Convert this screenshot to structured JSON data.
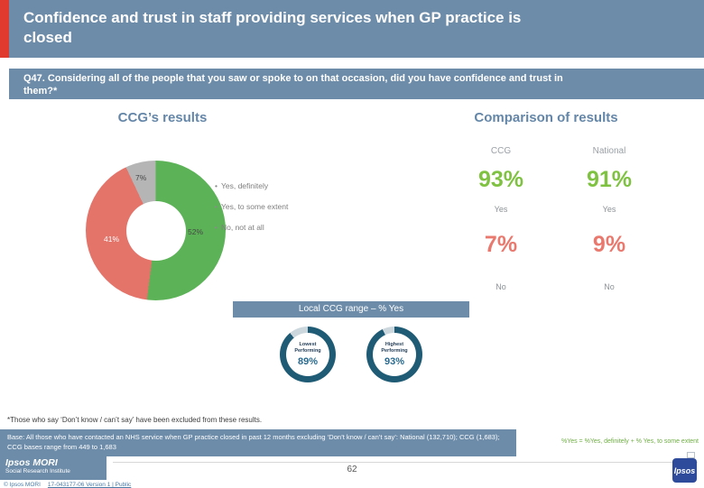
{
  "slide": {
    "title": "Confidence and trust in staff providing services when GP practice is closed",
    "question": "Q47. Considering all of the people that you saw or spoke to on that occasion, did you have confidence and trust in them?*",
    "footnote": "*Those who say ‘Don’t know / can’t say’ have been excluded from these results.",
    "base_text": "Base: All those who have contacted an NHS service when GP practice closed in past 12 months excluding ‘Don’t know / can’t say’: National (132,710); CCG (1,683); CCG bases range from 449 to 1,683",
    "yes_note": "%Yes = %Yes, definitely + % Yes, to some extent",
    "page_number": "62"
  },
  "headings": {
    "left": "CCG’s results",
    "right": "Comparison of results"
  },
  "comparison": {
    "columns": [
      "CCG",
      "National"
    ],
    "rows": [
      {
        "values": [
          "93%",
          "91%"
        ],
        "captions": [
          "Yes",
          "Yes"
        ]
      },
      {
        "values": [
          "7%",
          "9%"
        ],
        "captions": [
          "No",
          "No"
        ]
      }
    ]
  },
  "local_range": {
    "header": "Local CCG range – % Yes"
  },
  "chart_data": [
    {
      "type": "pie",
      "style": "donut",
      "title": "CCG’s results – Q47 confidence and trust",
      "labels": [
        "Yes, definitely",
        "Yes, to some extent",
        "No, not at all"
      ],
      "values": [
        52,
        41,
        7
      ],
      "value_labels": [
        "52%",
        "41%",
        "7%"
      ],
      "colors": [
        "#5cb357",
        "#e4736a",
        "#b5b5b5"
      ],
      "legend_position": "right"
    },
    {
      "type": "table",
      "title": "Comparison of results",
      "columns": [
        "CCG",
        "National"
      ],
      "rows": [
        {
          "label": "Yes",
          "CCG": "93%",
          "National": "91%"
        },
        {
          "label": "No",
          "CCG": "7%",
          "National": "9%"
        }
      ]
    },
    {
      "type": "pie",
      "style": "donut",
      "title": "Lowest Performing",
      "values": [
        89,
        11
      ],
      "value_labels": [
        "89%"
      ],
      "colors": [
        "#1f5b74",
        "#ccd7dd"
      ]
    },
    {
      "type": "pie",
      "style": "donut",
      "title": "Highest Performing",
      "values": [
        93,
        7
      ],
      "value_labels": [
        "93%"
      ],
      "colors": [
        "#1f5b74",
        "#ccd7dd"
      ]
    }
  ],
  "footer": {
    "logo_line1": "Ipsos MORI",
    "logo_line2": "Social Research Institute",
    "copyright": "© Ipsos MORI",
    "doc_ref": "17-043177-06 Version 1 | Public",
    "brand": "Ipsos"
  },
  "colors": {
    "bar_blue": "#6d8ca9",
    "accent_red": "#e0392e",
    "positive_green": "#7fc241",
    "negative_red": "#e9796e",
    "gauge_fill": "#1f5b74",
    "gauge_rest": "#ccd7dd"
  }
}
